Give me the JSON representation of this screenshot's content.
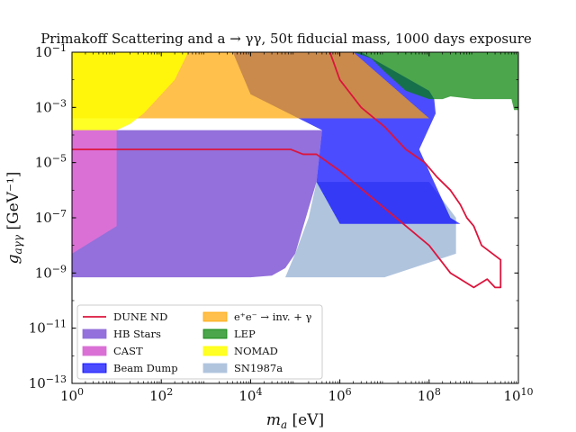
{
  "chart_data": {
    "type": "area",
    "title": "Primakoff Scattering and a → γγ, 50t fiducial mass, 1000 days exposure",
    "xlabel": "m_a [eV]",
    "ylabel": "g_aγγ [GeV⁻¹]",
    "x_scale": "log",
    "y_scale": "log",
    "xlim": [
      1,
      10000000000
    ],
    "ylim": [
      1e-13,
      0.1
    ],
    "x_ticks": [
      {
        "value": 1,
        "label": "10^0"
      },
      {
        "value": 100,
        "label": "10^2"
      },
      {
        "value": 10000,
        "label": "10^4"
      },
      {
        "value": 1000000,
        "label": "10^6"
      },
      {
        "value": 100000000,
        "label": "10^8"
      },
      {
        "value": 10000000000,
        "label": "10^10"
      }
    ],
    "y_ticks": [
      {
        "value": 1e-13,
        "label": "10^−13"
      },
      {
        "value": 1e-11,
        "label": "10^−11"
      },
      {
        "value": 1e-09,
        "label": "10^−9"
      },
      {
        "value": 1e-07,
        "label": "10^−7"
      },
      {
        "value": 1e-05,
        "label": "10^−5"
      },
      {
        "value": 0.001,
        "label": "10^−3"
      },
      {
        "value": 0.1,
        "label": "10^−1"
      }
    ],
    "grid": false,
    "legend": {
      "position": "lower-left",
      "columns": 2
    },
    "series": [
      {
        "name": "HB Stars",
        "kind": "region",
        "color": "#9370DB",
        "opacity": 1.0,
        "points": [
          [
            1,
            1e-13
          ],
          [
            1,
            7e-10
          ],
          [
            10000,
            7e-10
          ],
          [
            30000,
            8e-10
          ],
          [
            60000,
            1.5e-09
          ],
          [
            100000,
            5e-09
          ],
          [
            300000,
            2e-06
          ],
          [
            400000,
            0.00015
          ],
          [
            1,
            0.00015
          ]
        ]
      },
      {
        "name": "SN1987a",
        "kind": "region",
        "color": "#B0C4DE",
        "opacity": 1.0,
        "points": [
          [
            60000,
            7e-10
          ],
          [
            10000000,
            7e-10
          ],
          [
            400000000,
            5e-09
          ],
          [
            400000000,
            1e-07
          ],
          [
            100000000,
            2e-06
          ],
          [
            300000,
            2e-06
          ],
          [
            200000,
            1e-07
          ],
          [
            100000,
            5e-09
          ]
        ]
      },
      {
        "name": "CAST",
        "kind": "region",
        "color": "#DA70D6",
        "opacity": 1.0,
        "points": [
          [
            1,
            5e-09
          ],
          [
            10,
            5e-08
          ],
          [
            10,
            0.00015
          ],
          [
            1,
            0.00015
          ]
        ]
      },
      {
        "name": "Beam Dump",
        "kind": "region",
        "color": "#0000FF",
        "opacity": 0.7,
        "points": [
          [
            4000,
            0.1
          ],
          [
            3000000,
            0.1
          ],
          [
            100000000,
            0.004
          ],
          [
            130000000,
            0.002
          ],
          [
            140000000,
            0.0006
          ],
          [
            60000000,
            3e-05
          ],
          [
            300000000,
            1e-07
          ],
          [
            500000000,
            6e-08
          ],
          [
            1000000,
            6e-08
          ],
          [
            300000,
            2e-06
          ],
          [
            400000,
            0.00015
          ],
          [
            10000,
            0.003
          ]
        ]
      },
      {
        "name": "e⁺e⁻ → inv. + γ",
        "kind": "region",
        "color": "#FFA500",
        "opacity": 0.7,
        "points": [
          [
            1,
            0.1
          ],
          [
            2000000,
            0.1
          ],
          [
            100000000,
            0.0004
          ],
          [
            1,
            0.0004
          ]
        ]
      },
      {
        "name": "LEP",
        "kind": "region",
        "color": "#008000",
        "opacity": 0.7,
        "points": [
          [
            2000000,
            0.1
          ],
          [
            10000000000,
            0.1
          ],
          [
            10000000000,
            0.0008
          ],
          [
            8000000000,
            0.0008
          ],
          [
            7000000000,
            0.002
          ],
          [
            1000000000,
            0.002
          ],
          [
            300000000,
            0.0025
          ],
          [
            200000000,
            0.002
          ],
          [
            100000000,
            0.002
          ],
          [
            30000000,
            0.004
          ],
          [
            10000000,
            0.02
          ],
          [
            5000000,
            0.06
          ],
          [
            2000000,
            0.1
          ]
        ]
      },
      {
        "name": "NOMAD",
        "kind": "region",
        "color": "#FFFF00",
        "opacity": 0.85,
        "points": [
          [
            1,
            0.1
          ],
          [
            400,
            0.1
          ],
          [
            200,
            0.01
          ],
          [
            80,
            0.002
          ],
          [
            40,
            0.0006
          ],
          [
            20,
            0.00025
          ],
          [
            10,
            0.00015
          ],
          [
            1,
            0.00015
          ]
        ]
      },
      {
        "name": "DUNE ND",
        "kind": "line",
        "color": "#DC143C",
        "points": [
          [
            1,
            3e-05
          ],
          [
            80000,
            3e-05
          ],
          [
            150000,
            2e-05
          ],
          [
            300000,
            2e-05
          ],
          [
            1000000,
            5e-06
          ],
          [
            100000000,
            1e-08
          ],
          [
            300000000,
            1e-09
          ],
          [
            1000000000,
            3e-10
          ],
          [
            2000000000,
            6e-10
          ],
          [
            3000000000,
            3e-10
          ],
          [
            4000000000,
            3e-10
          ],
          [
            4000000000,
            3e-09
          ],
          [
            1500000000,
            1e-08
          ],
          [
            1000000000,
            5e-08
          ],
          [
            700000000,
            1e-07
          ],
          [
            500000000,
            3e-07
          ],
          [
            300000000,
            1e-06
          ],
          [
            150000000,
            3e-06
          ],
          [
            80000000,
            1e-05
          ],
          [
            30000000,
            3e-05
          ],
          [
            10000000,
            0.0002
          ],
          [
            3000000,
            0.001
          ],
          [
            1000000,
            0.01
          ],
          [
            600000,
            0.1
          ]
        ]
      }
    ]
  }
}
